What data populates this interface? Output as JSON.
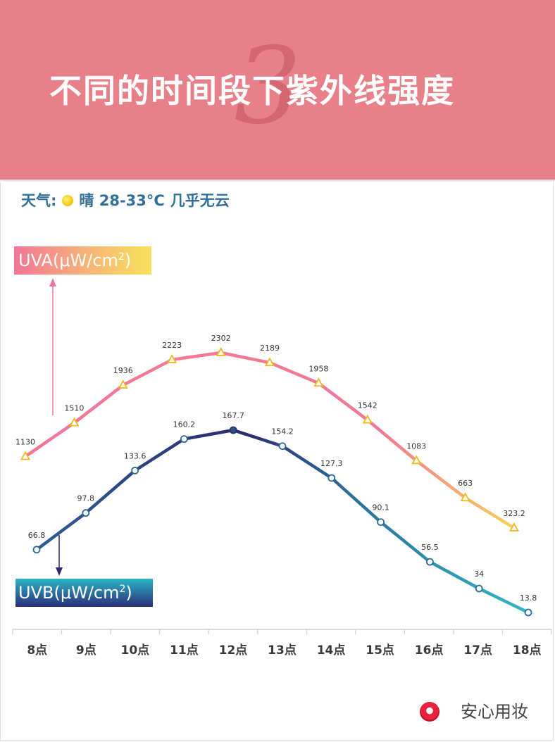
{
  "header": {
    "number": "3",
    "title": "不同的时间段下紫外线强度"
  },
  "weather": {
    "label": "天气:",
    "condition": "晴 28-33°C",
    "note": "几乎无云"
  },
  "labels": {
    "uva_main": "UVA(μW/cm",
    "uvb_main": "UVB(μW/cm",
    "sup": "2",
    "close": ")"
  },
  "brand": {
    "name": "安心用妆"
  },
  "colors": {
    "header_bg": "#e8808a",
    "uva_start": "#f27596",
    "uva_end": "#f8d25a",
    "uvb_start": "#2c5f92",
    "uvb_mid": "#2d2a6e",
    "uvb_end": "#32b6c4",
    "weather_text": "#2f6f98",
    "axis_text": "#3a3a3a"
  },
  "chart_data": {
    "type": "line",
    "categories": [
      "8点",
      "9点",
      "10点",
      "11点",
      "12点",
      "13点",
      "14点",
      "15点",
      "16点",
      "17点",
      "18点"
    ],
    "series": [
      {
        "name": "UVA(μW/cm2)",
        "values": [
          1130,
          1510,
          1936,
          2223,
          2302,
          2189,
          1958,
          1542,
          1083,
          663,
          323.2
        ],
        "marker": "triangle"
      },
      {
        "name": "UVB(μW/cm2)",
        "values": [
          66.8,
          97.8,
          133.6,
          160.2,
          167.7,
          154.2,
          127.3,
          90.1,
          56.5,
          34,
          13.8
        ],
        "marker": "circle"
      }
    ],
    "title": "",
    "xlabel": "",
    "ylabel": "",
    "grid": false,
    "legend": "left"
  }
}
